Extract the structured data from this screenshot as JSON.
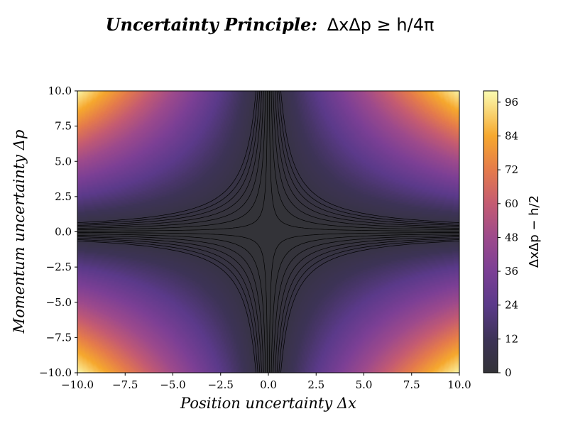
{
  "chart_data": {
    "type": "heatmap",
    "title_bold": "Uncertainty Principle:",
    "title_math": "ΔxΔp ≥ h/4π",
    "xlabel": "Position uncertainty Δx",
    "ylabel": "Momentum uncertainty Δp",
    "colorbar_label": "ΔxΔp − h/2",
    "xlim": [
      -10,
      10
    ],
    "ylim": [
      -10,
      10
    ],
    "x_ticks": [
      "−10.0",
      "−7.5",
      "−5.0",
      "−2.5",
      "0.0",
      "2.5",
      "5.0",
      "7.5",
      "10.0"
    ],
    "x_tick_values": [
      -10,
      -7.5,
      -5,
      -2.5,
      0,
      2.5,
      5,
      7.5,
      10
    ],
    "y_ticks": [
      "10.0",
      "7.5",
      "5.0",
      "2.5",
      "0.0",
      "−2.5",
      "−5.0",
      "−7.5",
      "−10.0"
    ],
    "y_tick_values": [
      10,
      7.5,
      5,
      2.5,
      0,
      -2.5,
      -5,
      -7.5,
      -10
    ],
    "colorbar_ticks": [
      "0",
      "12",
      "24",
      "36",
      "48",
      "60",
      "72",
      "84",
      "96"
    ],
    "colorbar_tick_values": [
      0,
      12,
      24,
      36,
      48,
      60,
      72,
      84,
      96
    ],
    "z_range": [
      0,
      100
    ],
    "function": "|Δx·Δp| − h/2 (clipped at 0)",
    "colormap": "inferno (with transparency)",
    "grid": false,
    "colors": {
      "low": "#333338",
      "mid": "#7a3f93",
      "high": "#fbfcb2",
      "contour_line": "#000000"
    }
  }
}
